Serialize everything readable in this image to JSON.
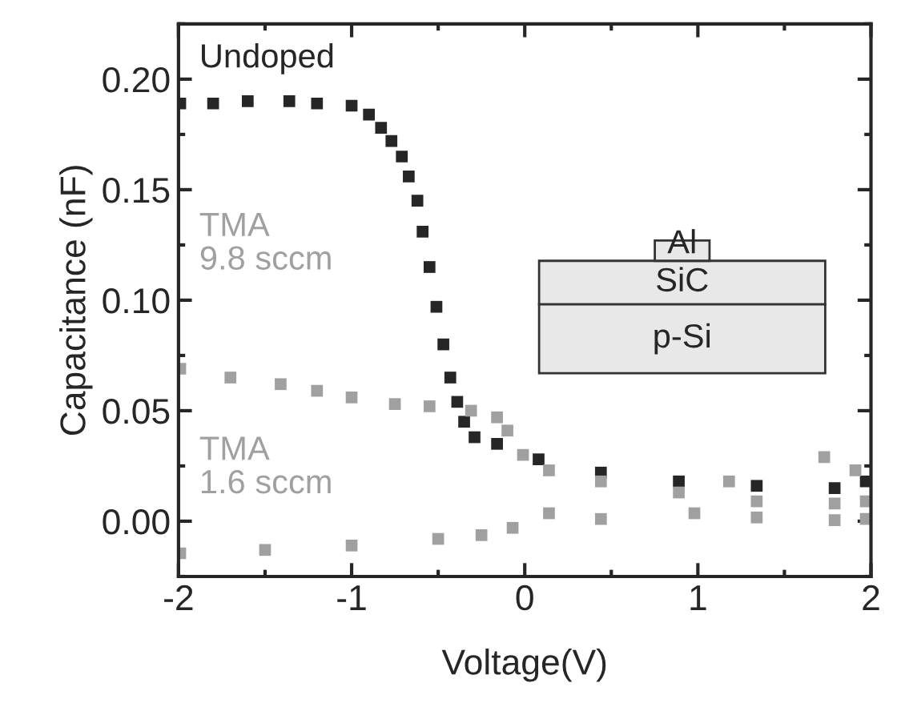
{
  "chart_data": {
    "type": "scatter",
    "xlabel": "Voltage(V)",
    "ylabel": "Capacitance (nF)",
    "xlim": [
      -2,
      2
    ],
    "ylim": [
      -0.025,
      0.225
    ],
    "xticks": [
      -2,
      -1,
      0,
      1,
      2
    ],
    "yticks": [
      {
        "value": 0,
        "label": "0.00"
      },
      {
        "value": 0.05,
        "label": "0.05"
      },
      {
        "value": 0.1,
        "label": "0.10"
      },
      {
        "value": 0.15,
        "label": "0.15"
      },
      {
        "value": 0.2,
        "label": "0.20"
      }
    ],
    "marker": "square",
    "grid": false,
    "legend": "left",
    "annotations": [
      "Al",
      "SiC",
      "p-Si"
    ],
    "series": [
      {
        "name": "Undoped",
        "color": "#262626",
        "x": [
          -1.99,
          -1.8,
          -1.6,
          -1.36,
          -1.2,
          -1.0,
          -0.9,
          -0.83,
          -0.77,
          -0.71,
          -0.67,
          -0.62,
          -0.59,
          -0.55,
          -0.51,
          -0.47,
          -0.43,
          -0.39,
          -0.35,
          -0.29,
          -0.16,
          0.08,
          0.44,
          0.89,
          1.34,
          1.79,
          1.97
        ],
        "values": [
          0.189,
          0.189,
          0.19,
          0.19,
          0.189,
          0.188,
          0.184,
          0.178,
          0.172,
          0.165,
          0.156,
          0.145,
          0.131,
          0.115,
          0.097,
          0.08,
          0.065,
          0.054,
          0.045,
          0.038,
          0.035,
          0.028,
          0.022,
          0.018,
          0.016,
          0.015,
          0.018
        ]
      },
      {
        "name": "TMA\n9.8 sccm",
        "color": "#a0a0a0",
        "x": [
          -1.99,
          -1.7,
          -1.41,
          -1.2,
          -1.0,
          -0.75,
          -0.55,
          -0.31,
          -0.16,
          -0.1,
          -0.01,
          0.14,
          0.44,
          0.89,
          1.18,
          1.34,
          1.73,
          1.79,
          1.91,
          1.97
        ],
        "values": [
          0.069,
          0.065,
          0.062,
          0.059,
          0.056,
          0.053,
          0.052,
          0.05,
          0.047,
          0.041,
          0.03,
          0.023,
          0.018,
          0.013,
          0.018,
          0.009,
          0.029,
          0.008,
          0.023,
          0.009
        ]
      },
      {
        "name": "TMA\n1.6 sccm",
        "color": "#a0a0a0",
        "x": [
          -1.99,
          -1.5,
          -1.0,
          -0.5,
          -0.25,
          -0.07,
          0.14,
          0.44,
          0.98,
          1.34,
          1.79,
          1.97
        ],
        "values": [
          -0.0145,
          -0.013,
          -0.011,
          -0.008,
          -0.0063,
          -0.003,
          0.0036,
          0.001,
          0.0036,
          0.0017,
          0.0005,
          0.001
        ]
      }
    ]
  }
}
